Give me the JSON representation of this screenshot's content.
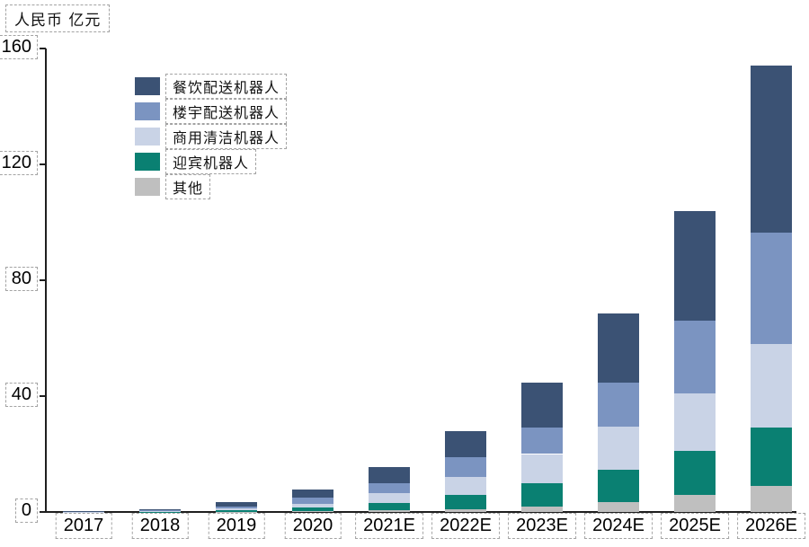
{
  "title": "人民币 亿元",
  "axis_color": "#1f1f1f",
  "dashed_box_color": "#a3a3a3",
  "chart_data": {
    "type": "bar",
    "stacked": true,
    "title": "人民币 亿元",
    "ylabel": "人民币 亿元",
    "xlabel": "",
    "ylim": [
      0,
      160
    ],
    "yticks": [
      0,
      40,
      80,
      120,
      160
    ],
    "grid": false,
    "legend_position": "upper-left-inside",
    "categories": [
      "2017",
      "2018",
      "2019",
      "2020",
      "2021E",
      "2022E",
      "2023E",
      "2024E",
      "2025E",
      "2026E"
    ],
    "series": [
      {
        "name": "餐饮配送机器人",
        "color": "#3B5274",
        "values": [
          0.1,
          0.4,
          1.4,
          2.8,
          5.5,
          9,
          15.5,
          24,
          38,
          57.5
        ]
      },
      {
        "name": "楼宇配送机器人",
        "color": "#7B94C1",
        "values": [
          0.05,
          0.3,
          0.8,
          2.1,
          3.6,
          7,
          9,
          15,
          25,
          38.5
        ]
      },
      {
        "name": "商用清洁机器人",
        "color": "#C9D3E6",
        "values": [
          0.05,
          0.15,
          0.6,
          1.4,
          3.3,
          6,
          10,
          15,
          20,
          29
        ]
      },
      {
        "name": "迎宾机器人",
        "color": "#0A8072",
        "values": [
          0.05,
          0.1,
          0.5,
          1.3,
          2.6,
          5,
          8,
          11,
          15,
          20
        ]
      },
      {
        "name": "其他",
        "color": "#BFBFBF",
        "values": [
          0.05,
          0.05,
          0.1,
          0.2,
          0.5,
          1,
          2,
          3.5,
          6,
          9
        ]
      }
    ],
    "stack_order_bottom_to_top": [
      "其他",
      "迎宾机器人",
      "商用清洁机器人",
      "楼宇配送机器人",
      "餐饮配送机器人"
    ],
    "totals": [
      0.3,
      1.0,
      3.4,
      7.8,
      15.5,
      28,
      44.5,
      68.5,
      104,
      154
    ]
  }
}
